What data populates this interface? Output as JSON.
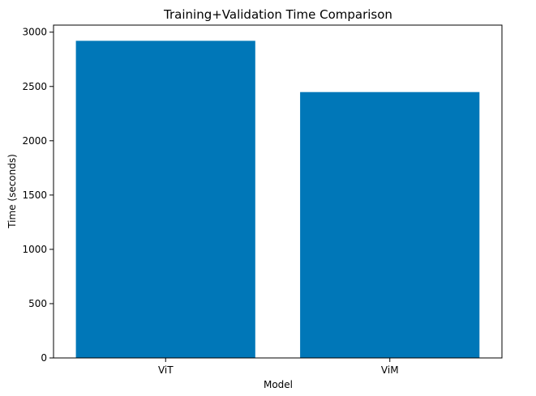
{
  "chart_data": {
    "type": "bar",
    "title": "Training+Validation Time Comparison",
    "xlabel": "Model",
    "ylabel": "Time (seconds)",
    "categories": [
      "ViT",
      "ViM"
    ],
    "values": [
      2920,
      2448
    ],
    "ylim": [
      0,
      3065
    ],
    "yticks": [
      0,
      500,
      1000,
      1500,
      2000,
      2500,
      3000
    ],
    "grid": false,
    "legend": "none",
    "bar_color": "#0077b8"
  }
}
